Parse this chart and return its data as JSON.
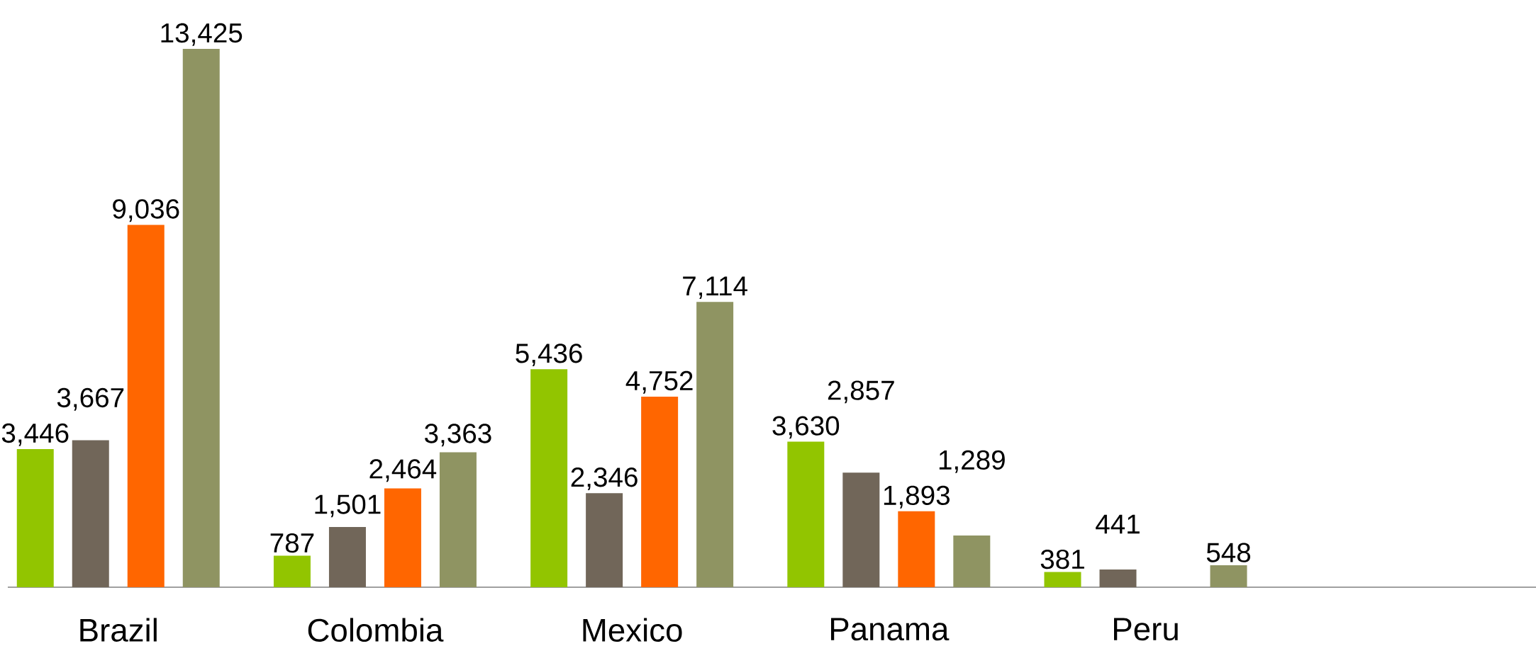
{
  "chart_data": {
    "type": "bar",
    "categories": [
      "Brazil",
      "Colombia",
      "Mexico",
      "Panama",
      "Peru",
      null
    ],
    "series": [
      {
        "color": "#92c500",
        "values": [
          3446,
          787,
          5436,
          3630,
          381,
          null
        ],
        "value_labels": [
          "3,446",
          "787",
          "5,436",
          "3,630",
          "381",
          null
        ]
      },
      {
        "color": "#716659",
        "values": [
          3667,
          1501,
          2346,
          2857,
          441,
          null
        ],
        "value_labels": [
          "3,667",
          "1,501",
          "2,346",
          "2,857",
          "441",
          null
        ]
      },
      {
        "color": "#ff6600",
        "values": [
          9036,
          2464,
          4752,
          1893,
          null,
          null
        ],
        "value_labels": [
          "9,036",
          "2,464",
          "4,752",
          "1,893",
          null,
          null
        ]
      },
      {
        "color": "#8f9462",
        "values": [
          13425,
          3363,
          7114,
          1289,
          548,
          null
        ],
        "value_labels": [
          "13,425",
          "3,363",
          "7,114",
          "1,289",
          "548",
          null
        ]
      }
    ],
    "tick_labels": "x"
  }
}
